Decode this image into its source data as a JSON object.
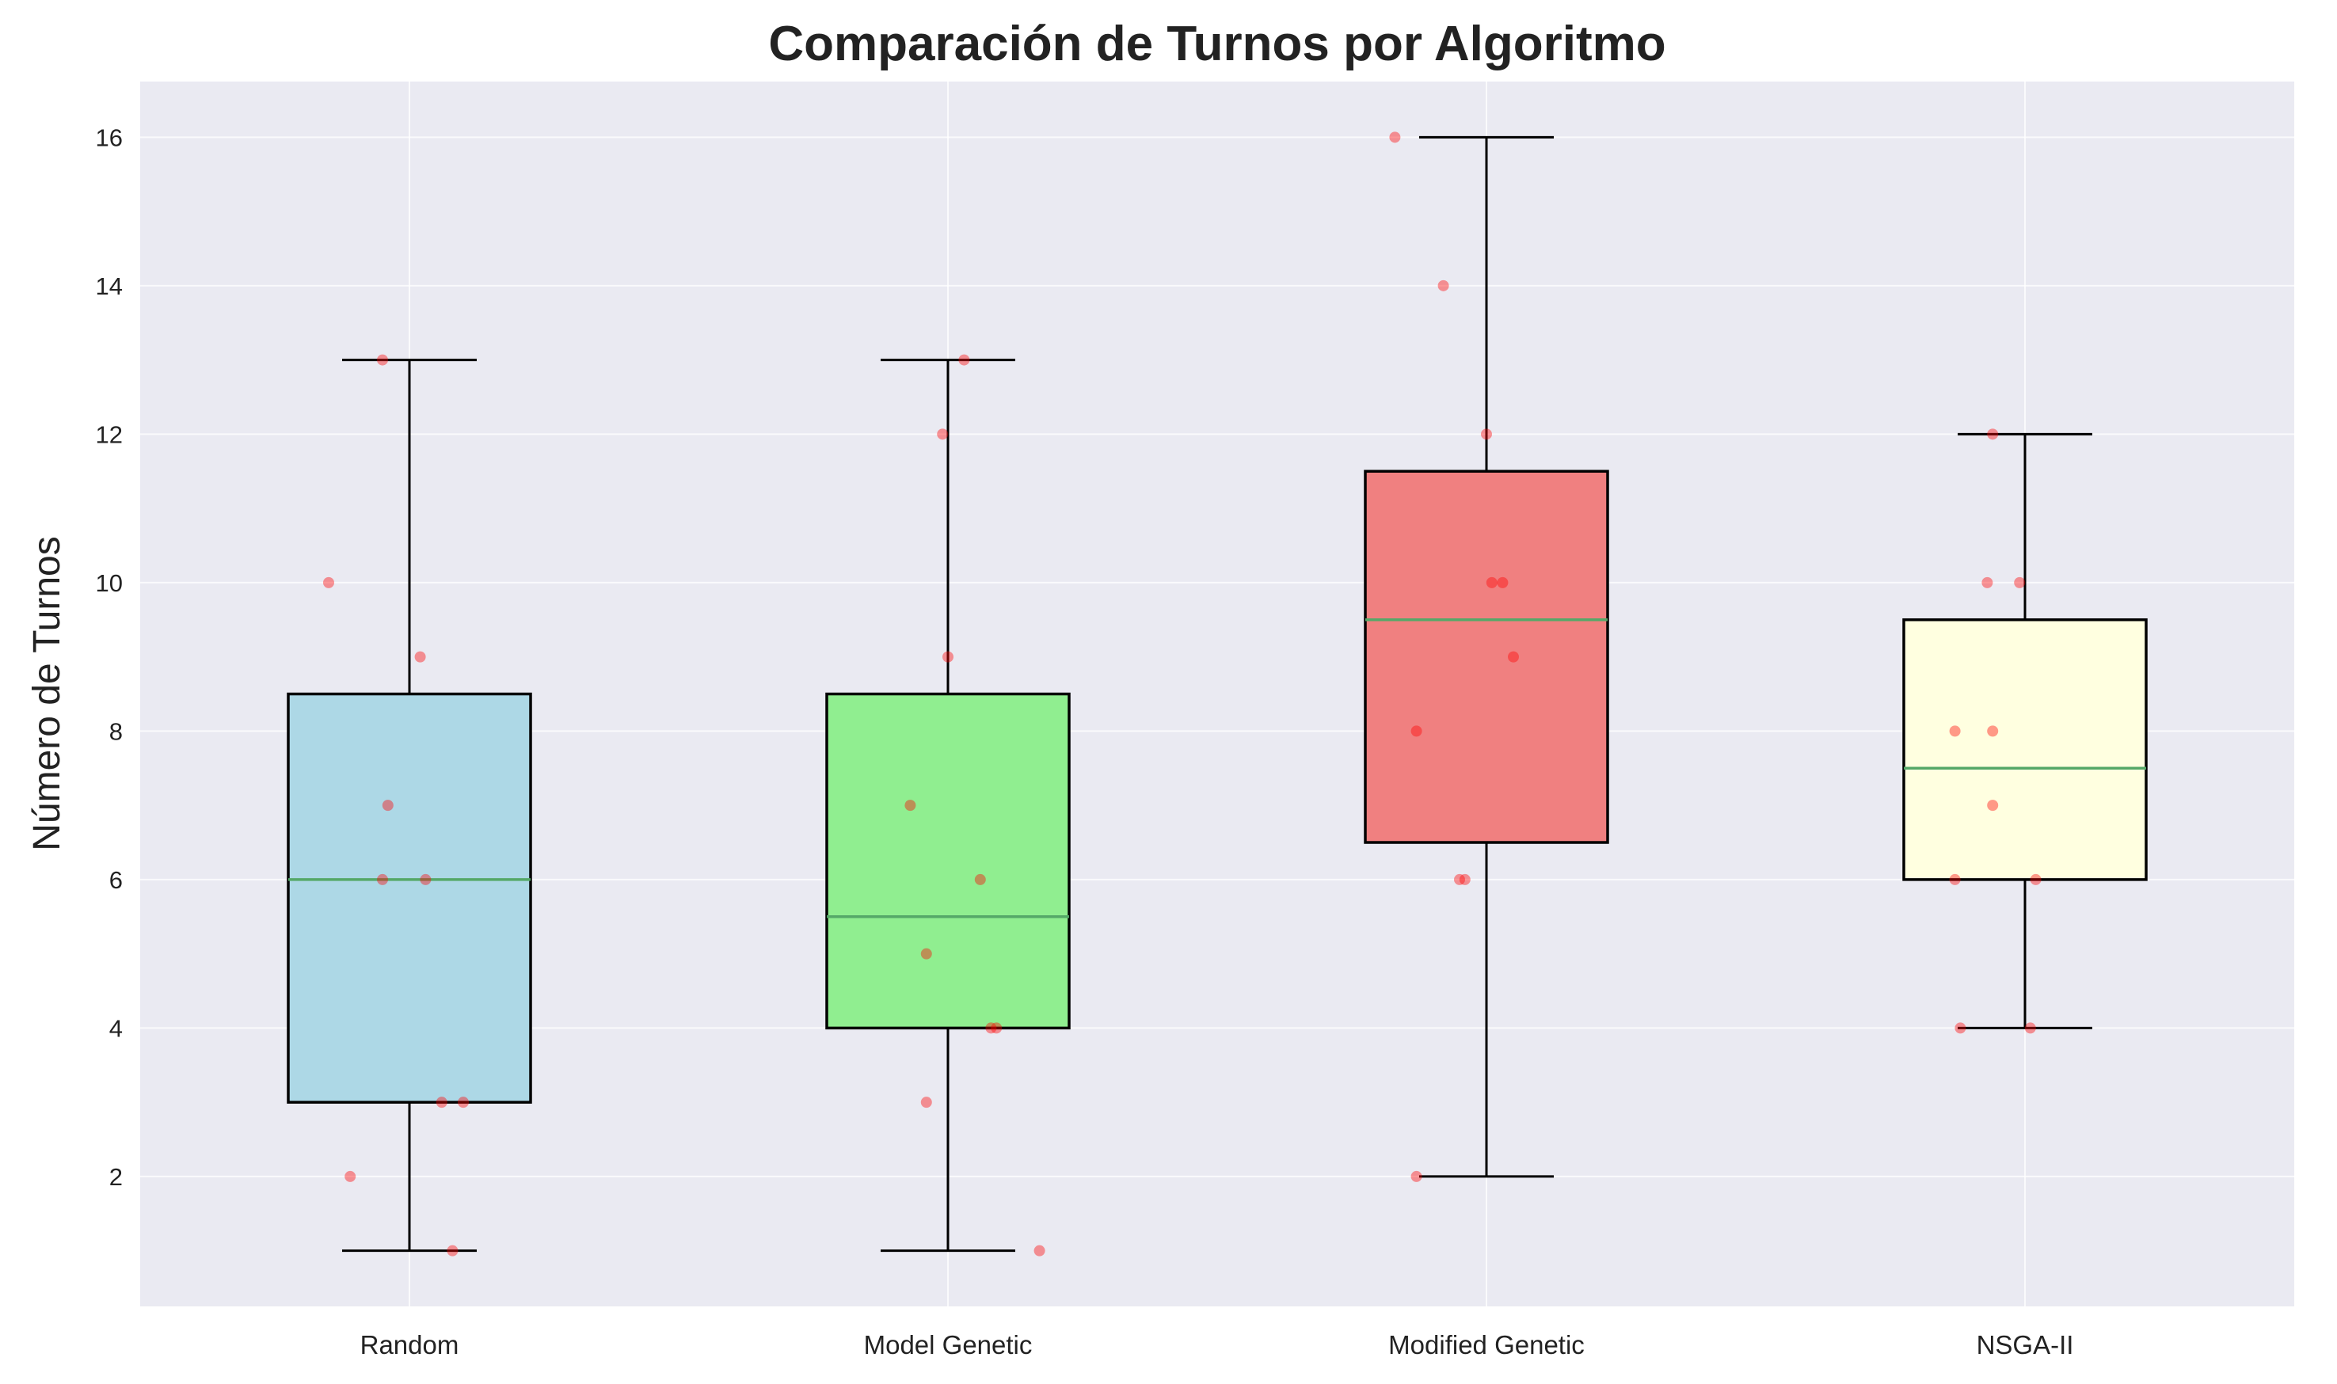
{
  "chart_data": {
    "type": "box",
    "title": "Comparación de Turnos por Algoritmo",
    "xlabel": "",
    "ylabel": "Número de Turnos",
    "ylim": [
      0.25,
      16.75
    ],
    "yticks": [
      2,
      4,
      6,
      8,
      10,
      12,
      14,
      16
    ],
    "grid": true,
    "categories": [
      "Random",
      "Model Genetic",
      "Modified Genetic",
      "NSGA-II"
    ],
    "box_colors": [
      "#add8e6",
      "#90ee90",
      "#f08080",
      "#ffffe0"
    ],
    "median_color": "#55a868",
    "point_color": "#ff0000",
    "background_color": "#eaeaf2",
    "boxes": [
      {
        "whisker_low": 1,
        "q1": 3,
        "median": 6,
        "q3": 8.5,
        "whisker_high": 13,
        "points": [
          13,
          10,
          9,
          7,
          6,
          6,
          3,
          3,
          2,
          1
        ],
        "jitter": [
          -0.05,
          -0.15,
          0.02,
          -0.04,
          -0.05,
          0.03,
          0.06,
          0.1,
          -0.11,
          0.08
        ]
      },
      {
        "whisker_low": 1,
        "q1": 4,
        "median": 5.5,
        "q3": 8.5,
        "whisker_high": 13,
        "points": [
          13,
          12,
          9,
          7,
          6,
          5,
          4,
          4,
          3,
          1
        ],
        "jitter": [
          0.03,
          -0.01,
          0.0,
          -0.07,
          0.06,
          -0.04,
          0.08,
          0.09,
          -0.04,
          0.17
        ]
      },
      {
        "whisker_low": 2,
        "q1": 6.5,
        "median": 9.5,
        "q3": 11.5,
        "whisker_high": 16,
        "points": [
          16,
          14,
          12,
          10,
          10,
          9,
          8,
          6,
          6,
          2
        ],
        "jitter": [
          -0.17,
          -0.08,
          0.0,
          0.01,
          0.03,
          0.05,
          -0.13,
          -0.05,
          -0.04,
          -0.13
        ]
      },
      {
        "whisker_low": 4,
        "q1": 6,
        "median": 7.5,
        "q3": 9.5,
        "whisker_high": 12,
        "points": [
          12,
          10,
          10,
          8,
          8,
          7,
          6,
          6,
          4,
          4
        ],
        "jitter": [
          -0.06,
          -0.07,
          -0.01,
          -0.13,
          -0.06,
          -0.06,
          -0.13,
          0.02,
          -0.12,
          0.01
        ]
      }
    ]
  }
}
